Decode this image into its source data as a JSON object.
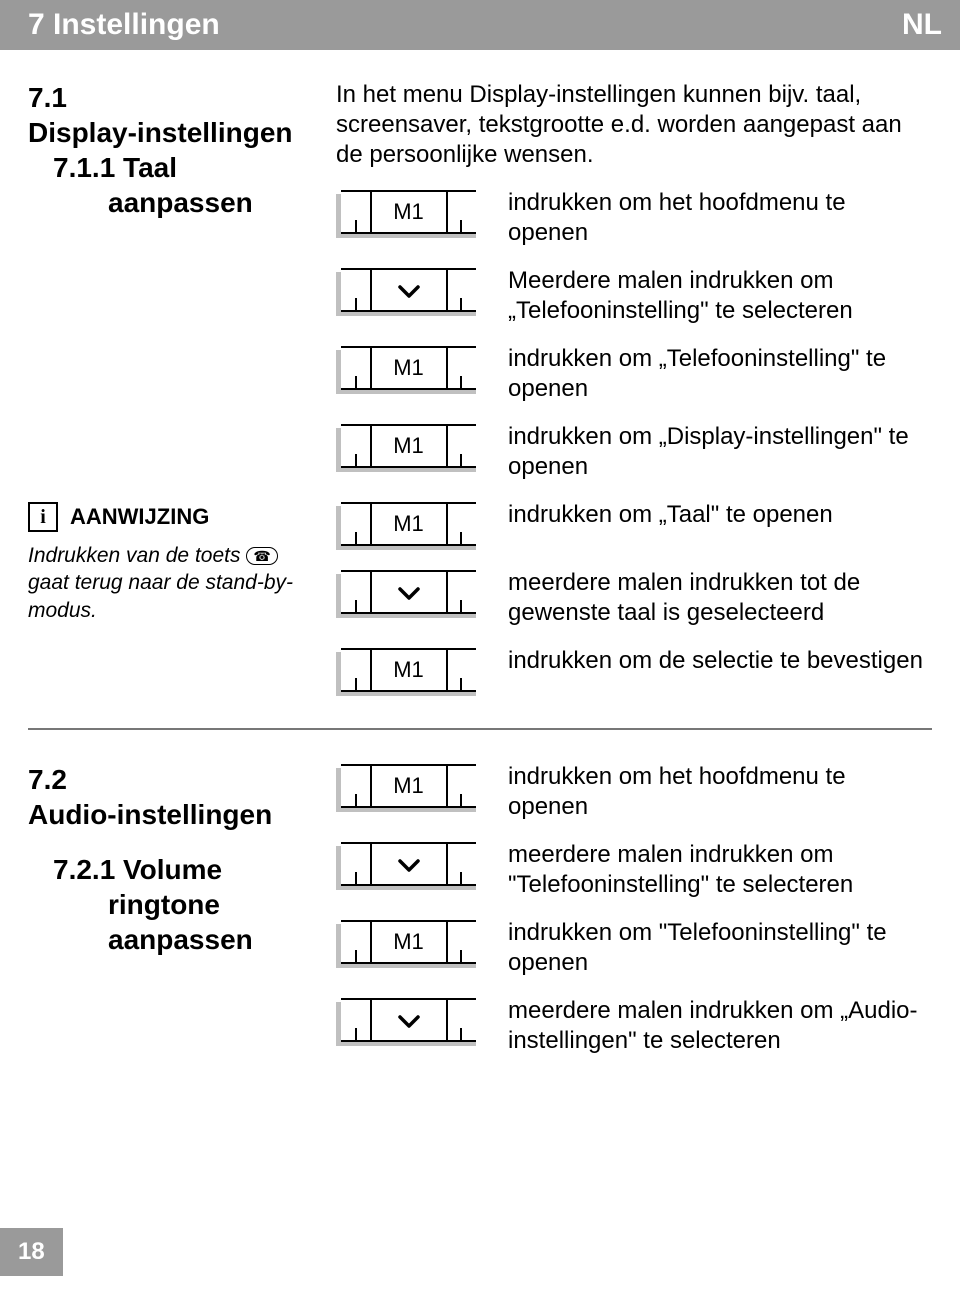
{
  "header": {
    "chapter": "7  Instellingen",
    "lang": "NL"
  },
  "section71": {
    "num": "7.1",
    "title": "Display-instellingen",
    "sub_num": "7.1.1 Taal",
    "sub_word": "aanpassen",
    "intro": "In het menu Display-instellingen kunnen bijv. taal, screensaver, tekstgrootte e.d. worden aangepast aan de persoonlijke wensen.",
    "steps": [
      {
        "key": "M1",
        "text": "indrukken om het hoofdmenu te openen"
      },
      {
        "key": "down",
        "text": "Meerdere malen indrukken om „Telefooninstelling\" te selecteren"
      },
      {
        "key": "M1",
        "text": "indrukken om „Telefooninstelling\" te openen"
      },
      {
        "key": "M1",
        "text": "indrukken om „Display-instellingen\" te openen"
      },
      {
        "key": "M1",
        "text": "indrukken om „Taal\" te openen"
      },
      {
        "key": "down",
        "text": "meerdere malen indrukken tot de gewenste taal is geselecteerd"
      },
      {
        "key": "M1",
        "text": "indrukken om de selectie te bevestigen"
      }
    ]
  },
  "aanwijzing": {
    "label": "AANWIJZING",
    "text_before": "Indrukken van de toets ",
    "text_after": " gaat terug naar de stand-by-modus.",
    "icon_glyph": "☎"
  },
  "section72": {
    "num": "7.2",
    "title": "Audio-instellingen",
    "sub_num": "7.2.1 Volume",
    "sub_word1": "ringtone",
    "sub_word2": "aanpassen",
    "steps": [
      {
        "key": "M1",
        "text": "indrukken om het hoofdmenu te openen"
      },
      {
        "key": "down",
        "text": "meerdere malen indrukken om \"Telefooninstelling\" te selecteren"
      },
      {
        "key": "M1",
        "text": "indrukken om \"Telefooninstelling\" te openen"
      },
      {
        "key": "down",
        "text": "meerdere malen indrukken om „Audio-instellingen\" te selecteren"
      }
    ]
  },
  "page_number": "18",
  "key_labels": {
    "M1": "M1"
  },
  "colors": {
    "header_bg": "#9a9a9a",
    "header_fg": "#ffffff",
    "shadow": "#c0c0c0"
  }
}
